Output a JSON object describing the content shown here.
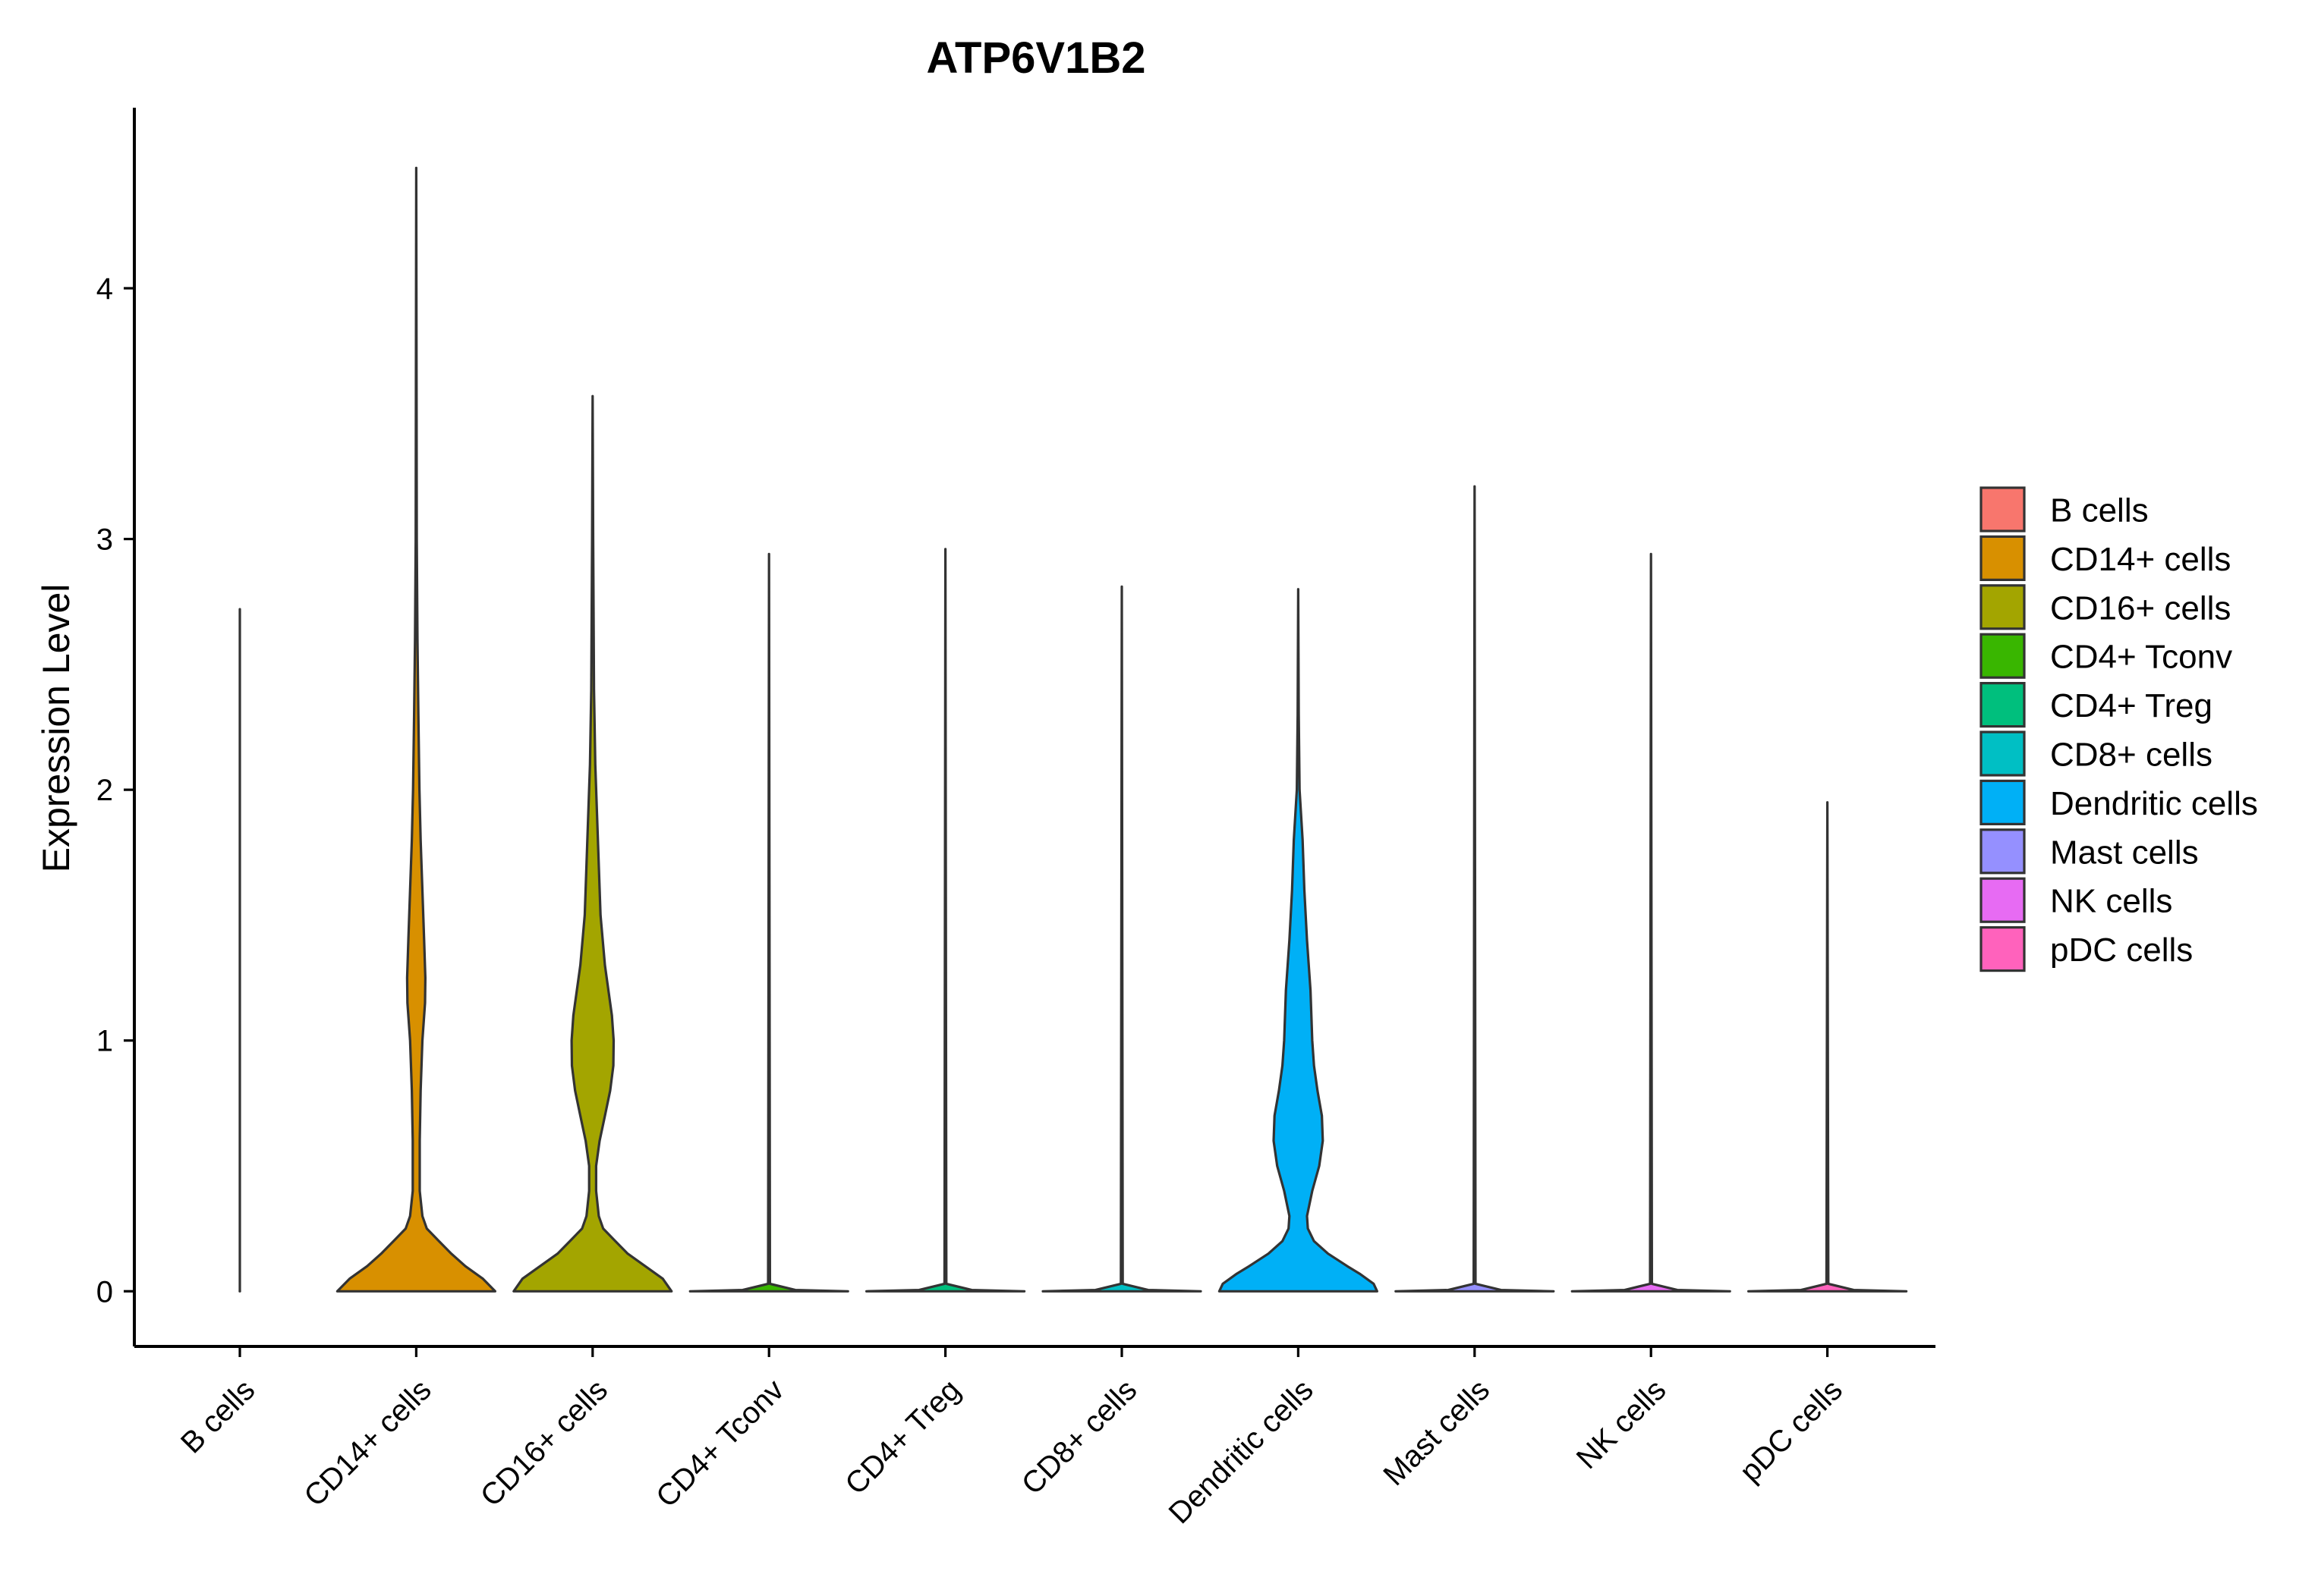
{
  "chart_data": {
    "type": "violin",
    "title": "ATP6V1B2",
    "xlabel": "",
    "ylabel": "Expression Level",
    "ylim": [
      -0.22,
      4.72
    ],
    "yticks": [
      0,
      1,
      2,
      3,
      4
    ],
    "grid": false,
    "legend_position": "right",
    "series": [
      {
        "name": "B cells",
        "color": "#F8766D",
        "max": 2.72,
        "profile": [
          [
            0,
            0.0005
          ],
          [
            0.005,
            0.0002
          ],
          [
            0.03,
            2e-05
          ],
          [
            2.72,
            0
          ]
        ]
      },
      {
        "name": "CD14+ cells",
        "color": "#D89000",
        "max": 4.48,
        "profile": [
          [
            0,
            0.45
          ],
          [
            0.05,
            0.38
          ],
          [
            0.1,
            0.28
          ],
          [
            0.15,
            0.2
          ],
          [
            0.2,
            0.13
          ],
          [
            0.25,
            0.06
          ],
          [
            0.3,
            0.035
          ],
          [
            0.4,
            0.02
          ],
          [
            0.6,
            0.02
          ],
          [
            0.8,
            0.025
          ],
          [
            1.0,
            0.035
          ],
          [
            1.15,
            0.05
          ],
          [
            1.25,
            0.052
          ],
          [
            1.4,
            0.045
          ],
          [
            1.6,
            0.035
          ],
          [
            1.8,
            0.025
          ],
          [
            2.0,
            0.018
          ],
          [
            2.3,
            0.012
          ],
          [
            2.6,
            0.007
          ],
          [
            3.0,
            0.003
          ],
          [
            4.48,
            0
          ]
        ]
      },
      {
        "name": "CD16+ cells",
        "color": "#A3A500",
        "max": 3.57,
        "profile": [
          [
            0,
            0.45
          ],
          [
            0.05,
            0.4
          ],
          [
            0.1,
            0.3
          ],
          [
            0.15,
            0.2
          ],
          [
            0.2,
            0.13
          ],
          [
            0.25,
            0.06
          ],
          [
            0.3,
            0.035
          ],
          [
            0.4,
            0.02
          ],
          [
            0.5,
            0.02
          ],
          [
            0.6,
            0.04
          ],
          [
            0.7,
            0.07
          ],
          [
            0.8,
            0.1
          ],
          [
            0.9,
            0.118
          ],
          [
            1.0,
            0.12
          ],
          [
            1.1,
            0.11
          ],
          [
            1.3,
            0.07
          ],
          [
            1.5,
            0.045
          ],
          [
            1.7,
            0.035
          ],
          [
            1.9,
            0.025
          ],
          [
            2.1,
            0.015
          ],
          [
            2.4,
            0.008
          ],
          [
            3.0,
            0.003
          ],
          [
            3.57,
            0
          ]
        ]
      },
      {
        "name": "CD4+ Tconv",
        "color": "#39B600",
        "max": 2.94,
        "profile": [
          [
            0,
            0.45
          ],
          [
            0.005,
            0.15
          ],
          [
            0.03,
            0.005
          ],
          [
            2.94,
            0
          ]
        ]
      },
      {
        "name": "CD4+ Treg",
        "color": "#00BF7D",
        "max": 2.96,
        "profile": [
          [
            0,
            0.45
          ],
          [
            0.005,
            0.15
          ],
          [
            0.03,
            0.005
          ],
          [
            2.96,
            0
          ]
        ]
      },
      {
        "name": "CD8+ cells",
        "color": "#00BFC4",
        "max": 2.81,
        "profile": [
          [
            0,
            0.45
          ],
          [
            0.005,
            0.15
          ],
          [
            0.03,
            0.005
          ],
          [
            2.81,
            0
          ]
        ]
      },
      {
        "name": "Dendritic cells",
        "color": "#00B0F6",
        "max": 2.8,
        "profile": [
          [
            0,
            0.45
          ],
          [
            0.03,
            0.43
          ],
          [
            0.07,
            0.35
          ],
          [
            0.1,
            0.28
          ],
          [
            0.15,
            0.17
          ],
          [
            0.2,
            0.09
          ],
          [
            0.25,
            0.055
          ],
          [
            0.3,
            0.05
          ],
          [
            0.4,
            0.08
          ],
          [
            0.5,
            0.12
          ],
          [
            0.6,
            0.14
          ],
          [
            0.7,
            0.135
          ],
          [
            0.8,
            0.11
          ],
          [
            0.9,
            0.09
          ],
          [
            1.0,
            0.08
          ],
          [
            1.2,
            0.07
          ],
          [
            1.4,
            0.05
          ],
          [
            1.6,
            0.035
          ],
          [
            1.8,
            0.025
          ],
          [
            2.0,
            0.008
          ],
          [
            2.3,
            0.003
          ],
          [
            2.8,
            0
          ]
        ]
      },
      {
        "name": "Mast cells",
        "color": "#9590FF",
        "max": 3.21,
        "profile": [
          [
            0,
            0.45
          ],
          [
            0.005,
            0.15
          ],
          [
            0.03,
            0.005
          ],
          [
            3.21,
            0
          ]
        ]
      },
      {
        "name": "NK cells",
        "color": "#E76BF3",
        "max": 2.94,
        "profile": [
          [
            0,
            0.45
          ],
          [
            0.005,
            0.15
          ],
          [
            0.03,
            0.005
          ],
          [
            2.94,
            0
          ]
        ]
      },
      {
        "name": "pDC cells",
        "color": "#FF62BC",
        "max": 1.95,
        "profile": [
          [
            0,
            0.45
          ],
          [
            0.005,
            0.15
          ],
          [
            0.03,
            0.005
          ],
          [
            1.95,
            0
          ]
        ]
      }
    ]
  }
}
